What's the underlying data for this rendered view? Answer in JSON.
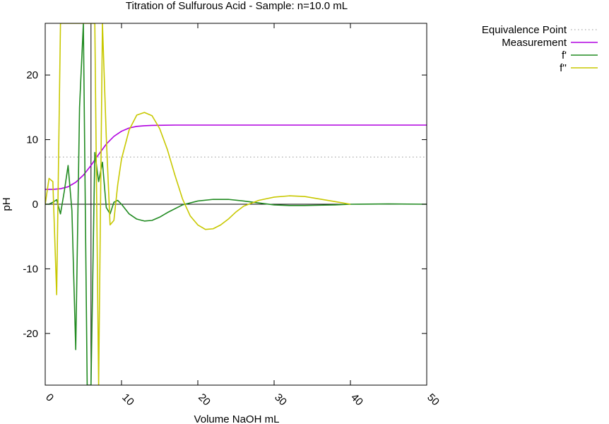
{
  "chart_data": {
    "type": "line",
    "title": "Titration of Sulfurous Acid - Sample: n=10.0 mL",
    "xlabel": "Volume NaOH mL",
    "ylabel": "pH",
    "xlim": [
      0,
      50
    ],
    "ylim": [
      -28,
      28
    ],
    "xticks": [
      0,
      10,
      20,
      30,
      40,
      50
    ],
    "yticks": [
      -20,
      -10,
      0,
      10,
      20
    ],
    "grid": false,
    "legend_position": "outside-top-right",
    "equivalence_volume": 6.0,
    "equivalence_ph": 7.3,
    "series": [
      {
        "name": "Equivalence Point",
        "style": "dotted",
        "color": "#aaaaaa",
        "x": [
          0,
          50
        ],
        "y": [
          7.3,
          7.3
        ]
      },
      {
        "name": "Measurement",
        "color": "#b000e0",
        "x": [
          0,
          1,
          2,
          3,
          4,
          5,
          6,
          7,
          8,
          9,
          10,
          11,
          12,
          13,
          14,
          15,
          17,
          20,
          25,
          30,
          40,
          50
        ],
        "y": [
          2.3,
          2.3,
          2.4,
          2.7,
          3.4,
          4.5,
          6.0,
          7.7,
          9.3,
          10.5,
          11.3,
          11.8,
          12.05,
          12.15,
          12.2,
          12.22,
          12.25,
          12.25,
          12.25,
          12.25,
          12.25,
          12.25
        ]
      },
      {
        "name": "f'",
        "color": "#228b22",
        "x": [
          0,
          0.5,
          1,
          1.5,
          2,
          2.5,
          3,
          3.5,
          4,
          4.5,
          5,
          5.5,
          6,
          6.5,
          7,
          7.5,
          8,
          8.5,
          9,
          9.5,
          10,
          11,
          12,
          13,
          14,
          15,
          16,
          18,
          20,
          22,
          24,
          26,
          28,
          30,
          32,
          34,
          36,
          38,
          40,
          45,
          50
        ],
        "y": [
          0,
          0,
          0.3,
          0.7,
          -1.5,
          2.0,
          6.0,
          -1.0,
          -22.5,
          15.0,
          28,
          -28,
          -28,
          8.0,
          3.5,
          6.5,
          -0.5,
          -1.5,
          0.3,
          0.6,
          0,
          -1.5,
          -2.3,
          -2.6,
          -2.5,
          -2.0,
          -1.3,
          -0.1,
          0.5,
          0.75,
          0.75,
          0.5,
          0.2,
          -0.1,
          -0.2,
          -0.2,
          -0.15,
          -0.1,
          0,
          0.05,
          0
        ]
      },
      {
        "name": "f''",
        "color": "#c8c800",
        "x": [
          0,
          0.5,
          1,
          1.5,
          2,
          2.5,
          3,
          3.5,
          4,
          4.5,
          5,
          5.5,
          6,
          6.5,
          7,
          7.5,
          8,
          8.5,
          9,
          9.5,
          10,
          11,
          12,
          13,
          14,
          15,
          16,
          17,
          18,
          19,
          20,
          21,
          22,
          23,
          24,
          25,
          26,
          28,
          30,
          32,
          34,
          36,
          38,
          40
        ],
        "y": [
          0,
          4.0,
          3.5,
          -14.0,
          28,
          28,
          28,
          28,
          28,
          28,
          28,
          28,
          28,
          28,
          -28,
          28,
          10.5,
          -3.2,
          -2.5,
          3.0,
          7.0,
          11.5,
          13.8,
          14.2,
          13.7,
          11.7,
          8.5,
          4.5,
          0.8,
          -1.8,
          -3.2,
          -3.9,
          -3.8,
          -3.2,
          -2.3,
          -1.2,
          -0.3,
          0.6,
          1.1,
          1.3,
          1.2,
          0.8,
          0.4,
          0
        ]
      }
    ]
  }
}
